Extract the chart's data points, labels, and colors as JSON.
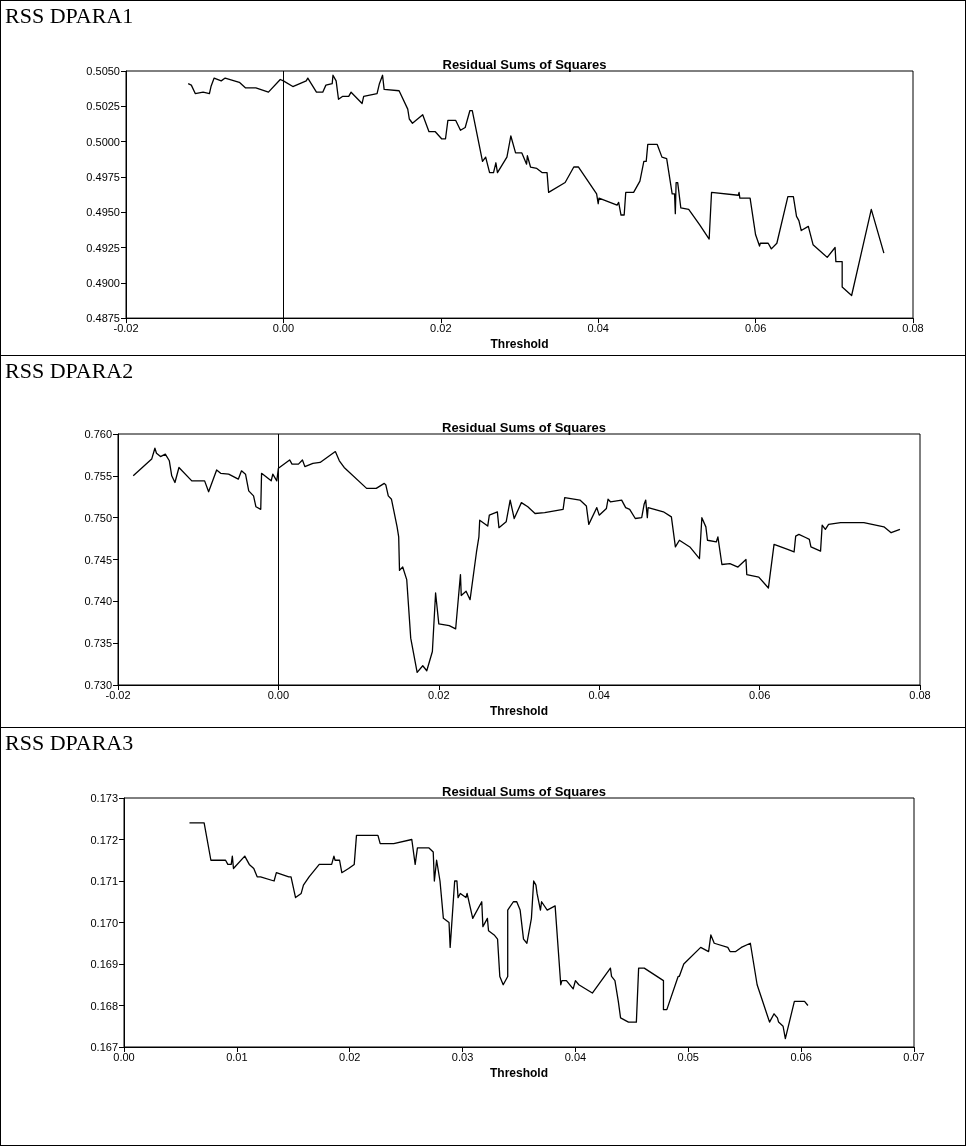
{
  "chart_data": [
    {
      "type": "line",
      "title": "RSS DPARA1",
      "subtitle": "Residual Sums of Squares",
      "xlabel": "Threshold",
      "x": [
        -0.0121,
        -0.0117,
        -0.0112,
        -0.0102,
        -0.0094,
        -0.0092,
        -0.0088,
        -0.0079,
        -0.0074,
        -0.0056,
        -0.0048,
        -0.0035,
        -0.0019,
        -0.0004,
        0.0,
        0.0012,
        0.0029,
        0.0031,
        0.0042,
        0.005,
        0.0054,
        0.0062,
        0.0063,
        0.0067,
        0.007,
        0.0075,
        0.0083,
        0.0086,
        0.01,
        0.0102,
        0.0119,
        0.0122,
        0.0126,
        0.0128,
        0.0147,
        0.0158,
        0.016,
        0.0164,
        0.0177,
        0.0185,
        0.0193,
        0.0201,
        0.0206,
        0.0209,
        0.0219,
        0.0225,
        0.0231,
        0.0237,
        0.024,
        0.0253,
        0.0257,
        0.0262,
        0.0267,
        0.027,
        0.0272,
        0.0284,
        0.0289,
        0.0295,
        0.0303,
        0.0309,
        0.031,
        0.0314,
        0.0322,
        0.0329,
        0.0335,
        0.0337,
        0.0358,
        0.0369,
        0.0375,
        0.0398,
        0.04,
        0.0401,
        0.0424,
        0.0426,
        0.0429,
        0.0433,
        0.0435,
        0.0445,
        0.0453,
        0.0458,
        0.0461,
        0.0463,
        0.0475,
        0.0481,
        0.0487,
        0.0494,
        0.0497,
        0.0498,
        0.0499,
        0.0501,
        0.0505,
        0.0515,
        0.0529,
        0.0541,
        0.0544,
        0.0578,
        0.0579,
        0.058,
        0.0593,
        0.06,
        0.0605,
        0.0606,
        0.0616,
        0.062,
        0.0627,
        0.0641,
        0.0648,
        0.0652,
        0.0655,
        0.0658,
        0.0667,
        0.0673,
        0.0691,
        0.0701,
        0.0702,
        0.071,
        0.071,
        0.0722,
        0.0747,
        0.0763
      ],
      "series": [
        {
          "color": "#000000",
          "values": [
            0.5041,
            0.504,
            0.5034,
            0.5035,
            0.5034,
            0.5039,
            0.5045,
            0.5043,
            0.5045,
            0.5042,
            0.5038,
            0.5038,
            0.5035,
            0.5044,
            0.5043,
            0.5039,
            0.5043,
            0.5045,
            0.5035,
            0.5035,
            0.504,
            0.5041,
            0.5047,
            0.5043,
            0.503,
            0.5032,
            0.5032,
            0.5035,
            0.5027,
            0.5032,
            0.5034,
            0.5041,
            0.5047,
            0.5037,
            0.5036,
            0.5023,
            0.5016,
            0.5013,
            0.5019,
            0.5007,
            0.5007,
            0.5002,
            0.5002,
            0.5015,
            0.5015,
            0.5008,
            0.501,
            0.5022,
            0.5022,
            0.4986,
            0.4989,
            0.4978,
            0.4978,
            0.4985,
            0.4978,
            0.4989,
            0.5004,
            0.4992,
            0.4992,
            0.4984,
            0.499,
            0.4982,
            0.4981,
            0.4978,
            0.4978,
            0.4964,
            0.4971,
            0.4982,
            0.4982,
            0.4963,
            0.4956,
            0.496,
            0.4955,
            0.4957,
            0.4948,
            0.4948,
            0.4964,
            0.4964,
            0.4972,
            0.4986,
            0.4986,
            0.4998,
            0.4998,
            0.4989,
            0.4988,
            0.4963,
            0.4963,
            0.4949,
            0.4971,
            0.4971,
            0.4953,
            0.4952,
            0.4941,
            0.4931,
            0.4964,
            0.4962,
            0.4964,
            0.496,
            0.496,
            0.4934,
            0.4926,
            0.4928,
            0.4928,
            0.4924,
            0.4928,
            0.4961,
            0.4961,
            0.4947,
            0.4944,
            0.4937,
            0.494,
            0.4927,
            0.4918,
            0.4925,
            0.4915,
            0.4915,
            0.4897,
            0.4891,
            0.4952,
            0.4921
          ]
        }
      ],
      "xlim": [
        -0.02,
        0.08
      ],
      "xticks": [
        {
          "value": -0.02,
          "label": "-0.02"
        },
        {
          "value": 0,
          "label": "0.00"
        },
        {
          "value": 0.02,
          "label": "0.02"
        },
        {
          "value": 0.04,
          "label": "0.04"
        },
        {
          "value": 0.06,
          "label": "0.06"
        },
        {
          "value": 0.08,
          "label": "0.08"
        }
      ],
      "ylim": [
        0.4875,
        0.505
      ],
      "yticks": [
        {
          "value": 0.4875,
          "label": "0.4875"
        },
        {
          "value": 0.49,
          "label": "0.4900"
        },
        {
          "value": 0.4925,
          "label": "0.4925"
        },
        {
          "value": 0.495,
          "label": "0.4950"
        },
        {
          "value": 0.4975,
          "label": "0.4975"
        },
        {
          "value": 0.5,
          "label": "0.5000"
        },
        {
          "value": 0.5025,
          "label": "0.5025"
        },
        {
          "value": 0.505,
          "label": "0.5050"
        }
      ],
      "ref_lines": [
        {
          "axis": "x",
          "value": 0
        }
      ]
    },
    {
      "type": "line",
      "title": "RSS DPARA2",
      "subtitle": "Residual Sums of Squares",
      "xlabel": "Threshold",
      "x": [
        -0.0181,
        -0.0158,
        -0.0154,
        -0.0152,
        -0.0147,
        -0.0141,
        -0.0136,
        -0.0133,
        -0.0129,
        -0.0124,
        -0.0108,
        -0.0092,
        -0.0087,
        -0.0077,
        -0.0072,
        -0.0062,
        -0.005,
        -0.0046,
        -0.0041,
        -0.0037,
        -0.0031,
        -0.0028,
        -0.0022,
        -0.0021,
        -0.0009,
        -0.0007,
        -0.0002,
        0.0,
        0.0014,
        0.0017,
        0.0025,
        0.003,
        0.0033,
        0.0043,
        0.0052,
        0.0071,
        0.0076,
        0.0082,
        0.011,
        0.0122,
        0.0132,
        0.0134,
        0.0137,
        0.0141,
        0.0148,
        0.015,
        0.0151,
        0.0155,
        0.016,
        0.0165,
        0.0173,
        0.018,
        0.0185,
        0.0192,
        0.0196,
        0.02,
        0.0213,
        0.0221,
        0.0227,
        0.0228,
        0.0234,
        0.0239,
        0.0247,
        0.025,
        0.0251,
        0.0261,
        0.0263,
        0.0273,
        0.0275,
        0.0284,
        0.0289,
        0.0294,
        0.0303,
        0.0311,
        0.032,
        0.0332,
        0.0355,
        0.0357,
        0.0376,
        0.0384,
        0.0387,
        0.0397,
        0.04,
        0.0409,
        0.0411,
        0.0414,
        0.0428,
        0.0433,
        0.0438,
        0.0445,
        0.0453,
        0.0456,
        0.0458,
        0.046,
        0.0461,
        0.048,
        0.049,
        0.0495,
        0.05,
        0.0513,
        0.0525,
        0.0528,
        0.0533,
        0.0535,
        0.0546,
        0.0548,
        0.0553,
        0.0563,
        0.0573,
        0.0583,
        0.0584,
        0.0599,
        0.0611,
        0.0618,
        0.0635,
        0.0643,
        0.0645,
        0.0649,
        0.0658,
        0.0662,
        0.0664,
        0.0676,
        0.0678,
        0.0682,
        0.0686,
        0.0701,
        0.073,
        0.0755,
        0.0764,
        0.0775
      ],
      "series": [
        {
          "color": "#000000",
          "values": [
            0.755,
            0.757,
            0.7583,
            0.7577,
            0.7573,
            0.7576,
            0.7568,
            0.755,
            0.7542,
            0.756,
            0.7544,
            0.7544,
            0.7531,
            0.7557,
            0.7553,
            0.7552,
            0.7546,
            0.7556,
            0.7552,
            0.7532,
            0.7526,
            0.7513,
            0.751,
            0.7553,
            0.7544,
            0.7552,
            0.7544,
            0.7559,
            0.7569,
            0.7564,
            0.7564,
            0.7569,
            0.7561,
            0.7565,
            0.7566,
            0.7579,
            0.7568,
            0.756,
            0.7535,
            0.7535,
            0.7541,
            0.7539,
            0.7526,
            0.7522,
            0.7489,
            0.7477,
            0.7437,
            0.7441,
            0.7426,
            0.7356,
            0.7315,
            0.7323,
            0.7317,
            0.734,
            0.741,
            0.7373,
            0.7371,
            0.7367,
            0.7432,
            0.7407,
            0.7412,
            0.7402,
            0.7459,
            0.7477,
            0.7497,
            0.749,
            0.7503,
            0.7507,
            0.7488,
            0.7495,
            0.7521,
            0.7499,
            0.7518,
            0.7513,
            0.7505,
            0.7506,
            0.751,
            0.7524,
            0.7521,
            0.7514,
            0.7492,
            0.7512,
            0.7503,
            0.7511,
            0.7522,
            0.7519,
            0.7521,
            0.7512,
            0.751,
            0.7499,
            0.75,
            0.7516,
            0.7521,
            0.75,
            0.7512,
            0.7507,
            0.7501,
            0.7465,
            0.7473,
            0.7465,
            0.7451,
            0.75,
            0.7489,
            0.7473,
            0.7471,
            0.7477,
            0.7444,
            0.7445,
            0.7441,
            0.745,
            0.7432,
            0.7429,
            0.7416,
            0.7468,
            0.7462,
            0.7459,
            0.7478,
            0.748,
            0.7476,
            0.7474,
            0.7465,
            0.746,
            0.7491,
            0.7486,
            0.7492,
            0.7494,
            0.7494,
            0.7489,
            0.7482,
            0.7486
          ]
        }
      ],
      "xlim": [
        -0.02,
        0.08
      ],
      "xticks": [
        {
          "value": -0.02,
          "label": "-0.02"
        },
        {
          "value": 0,
          "label": "0.00"
        },
        {
          "value": 0.02,
          "label": "0.02"
        },
        {
          "value": 0.04,
          "label": "0.04"
        },
        {
          "value": 0.06,
          "label": "0.06"
        },
        {
          "value": 0.08,
          "label": "0.08"
        }
      ],
      "ylim": [
        0.73,
        0.76
      ],
      "yticks": [
        {
          "value": 0.73,
          "label": "0.730"
        },
        {
          "value": 0.735,
          "label": "0.735"
        },
        {
          "value": 0.74,
          "label": "0.740"
        },
        {
          "value": 0.745,
          "label": "0.745"
        },
        {
          "value": 0.75,
          "label": "0.750"
        },
        {
          "value": 0.755,
          "label": "0.755"
        },
        {
          "value": 0.76,
          "label": "0.760"
        }
      ],
      "ref_lines": [
        {
          "axis": "x",
          "value": 0
        }
      ]
    },
    {
      "type": "line",
      "title": "RSS DPARA3",
      "subtitle": "Residual Sums of Squares",
      "xlabel": "Threshold",
      "x": [
        0.0058,
        0.0064,
        0.0071,
        0.0077,
        0.0086,
        0.009,
        0.0092,
        0.0095,
        0.0096,
        0.0097,
        0.0107,
        0.0111,
        0.0115,
        0.0118,
        0.0121,
        0.0133,
        0.0135,
        0.0146,
        0.0148,
        0.0152,
        0.0157,
        0.0159,
        0.0164,
        0.0173,
        0.0182,
        0.0184,
        0.0186,
        0.0187,
        0.0191,
        0.0193,
        0.0199,
        0.0204,
        0.0206,
        0.021,
        0.0217,
        0.0219,
        0.0225,
        0.0227,
        0.0228,
        0.0239,
        0.0255,
        0.0258,
        0.026,
        0.0264,
        0.027,
        0.0274,
        0.0275,
        0.0277,
        0.028,
        0.0283,
        0.0288,
        0.0289,
        0.0293,
        0.0295,
        0.0296,
        0.0298,
        0.0303,
        0.0304,
        0.0309,
        0.0317,
        0.0318,
        0.0322,
        0.0323,
        0.0328,
        0.0331,
        0.0333,
        0.0336,
        0.034,
        0.034,
        0.0345,
        0.0348,
        0.0351,
        0.0354,
        0.0357,
        0.0361,
        0.0363,
        0.0365,
        0.0366,
        0.0369,
        0.037,
        0.0375,
        0.0382,
        0.0387,
        0.0388,
        0.0392,
        0.0398,
        0.04,
        0.0403,
        0.0415,
        0.0431,
        0.0432,
        0.0435,
        0.0438,
        0.044,
        0.0447,
        0.0454,
        0.0456,
        0.0461,
        0.0478,
        0.0478,
        0.0481,
        0.0491,
        0.0492,
        0.0496,
        0.0511,
        0.0518,
        0.052,
        0.0523,
        0.0535,
        0.0537,
        0.0542,
        0.0547,
        0.0555,
        0.0561,
        0.0572,
        0.0576,
        0.0579,
        0.058,
        0.0584,
        0.0586,
        0.0594,
        0.0603,
        0.0606
      ],
      "series": [
        {
          "color": "#000000",
          "values": [
            0.1724,
            0.1724,
            0.1724,
            0.1715,
            0.1715,
            0.1715,
            0.1714,
            0.1714,
            0.1716,
            0.1713,
            0.1716,
            0.1714,
            0.1713,
            0.1711,
            0.1711,
            0.171,
            0.1712,
            0.1711,
            0.1711,
            0.1706,
            0.1707,
            0.1709,
            0.1711,
            0.1714,
            0.1714,
            0.1714,
            0.1716,
            0.1715,
            0.1715,
            0.1712,
            0.1713,
            0.1714,
            0.1721,
            0.1721,
            0.1721,
            0.1721,
            0.1721,
            0.1719,
            0.1719,
            0.1719,
            0.172,
            0.1714,
            0.1718,
            0.1718,
            0.1718,
            0.1717,
            0.171,
            0.1715,
            0.171,
            0.1701,
            0.17,
            0.1694,
            0.171,
            0.171,
            0.1706,
            0.1707,
            0.1706,
            0.1707,
            0.1701,
            0.1705,
            0.1699,
            0.1701,
            0.1698,
            0.1697,
            0.1696,
            0.1687,
            0.1685,
            0.1687,
            0.1703,
            0.1705,
            0.1705,
            0.1703,
            0.1696,
            0.1695,
            0.1701,
            0.171,
            0.1709,
            0.1707,
            0.1703,
            0.1705,
            0.1703,
            0.1704,
            0.1685,
            0.1686,
            0.1686,
            0.1684,
            0.1686,
            0.1685,
            0.1683,
            0.1689,
            0.1687,
            0.1686,
            0.1681,
            0.1677,
            0.1676,
            0.1676,
            0.1689,
            0.1689,
            0.1686,
            0.1679,
            0.1679,
            0.1687,
            0.1687,
            0.169,
            0.1694,
            0.1693,
            0.1697,
            0.1695,
            0.1694,
            0.1693,
            0.1693,
            0.1694,
            0.1695,
            0.1685,
            0.1676,
            0.1678,
            0.1677,
            0.1676,
            0.1675,
            0.1672,
            0.1681,
            0.1681,
            0.168
          ]
        }
      ],
      "xlim": [
        0,
        0.07
      ],
      "xticks": [
        {
          "value": 0,
          "label": "0.00"
        },
        {
          "value": 0.01,
          "label": "0.01"
        },
        {
          "value": 0.02,
          "label": "0.02"
        },
        {
          "value": 0.03,
          "label": "0.03"
        },
        {
          "value": 0.04,
          "label": "0.04"
        },
        {
          "value": 0.05,
          "label": "0.05"
        },
        {
          "value": 0.06,
          "label": "0.06"
        },
        {
          "value": 0.07,
          "label": "0.07"
        }
      ],
      "ylim": [
        0.167,
        0.173
      ],
      "yticks": [
        {
          "value": 0.167,
          "label": "0.167"
        },
        {
          "value": 0.168,
          "label": "0.168"
        },
        {
          "value": 0.169,
          "label": "0.169"
        },
        {
          "value": 0.17,
          "label": "0.170"
        },
        {
          "value": 0.171,
          "label": "0.171"
        },
        {
          "value": 0.172,
          "label": "0.172"
        },
        {
          "value": 0.173,
          "label": "0.173"
        }
      ]
    }
  ]
}
